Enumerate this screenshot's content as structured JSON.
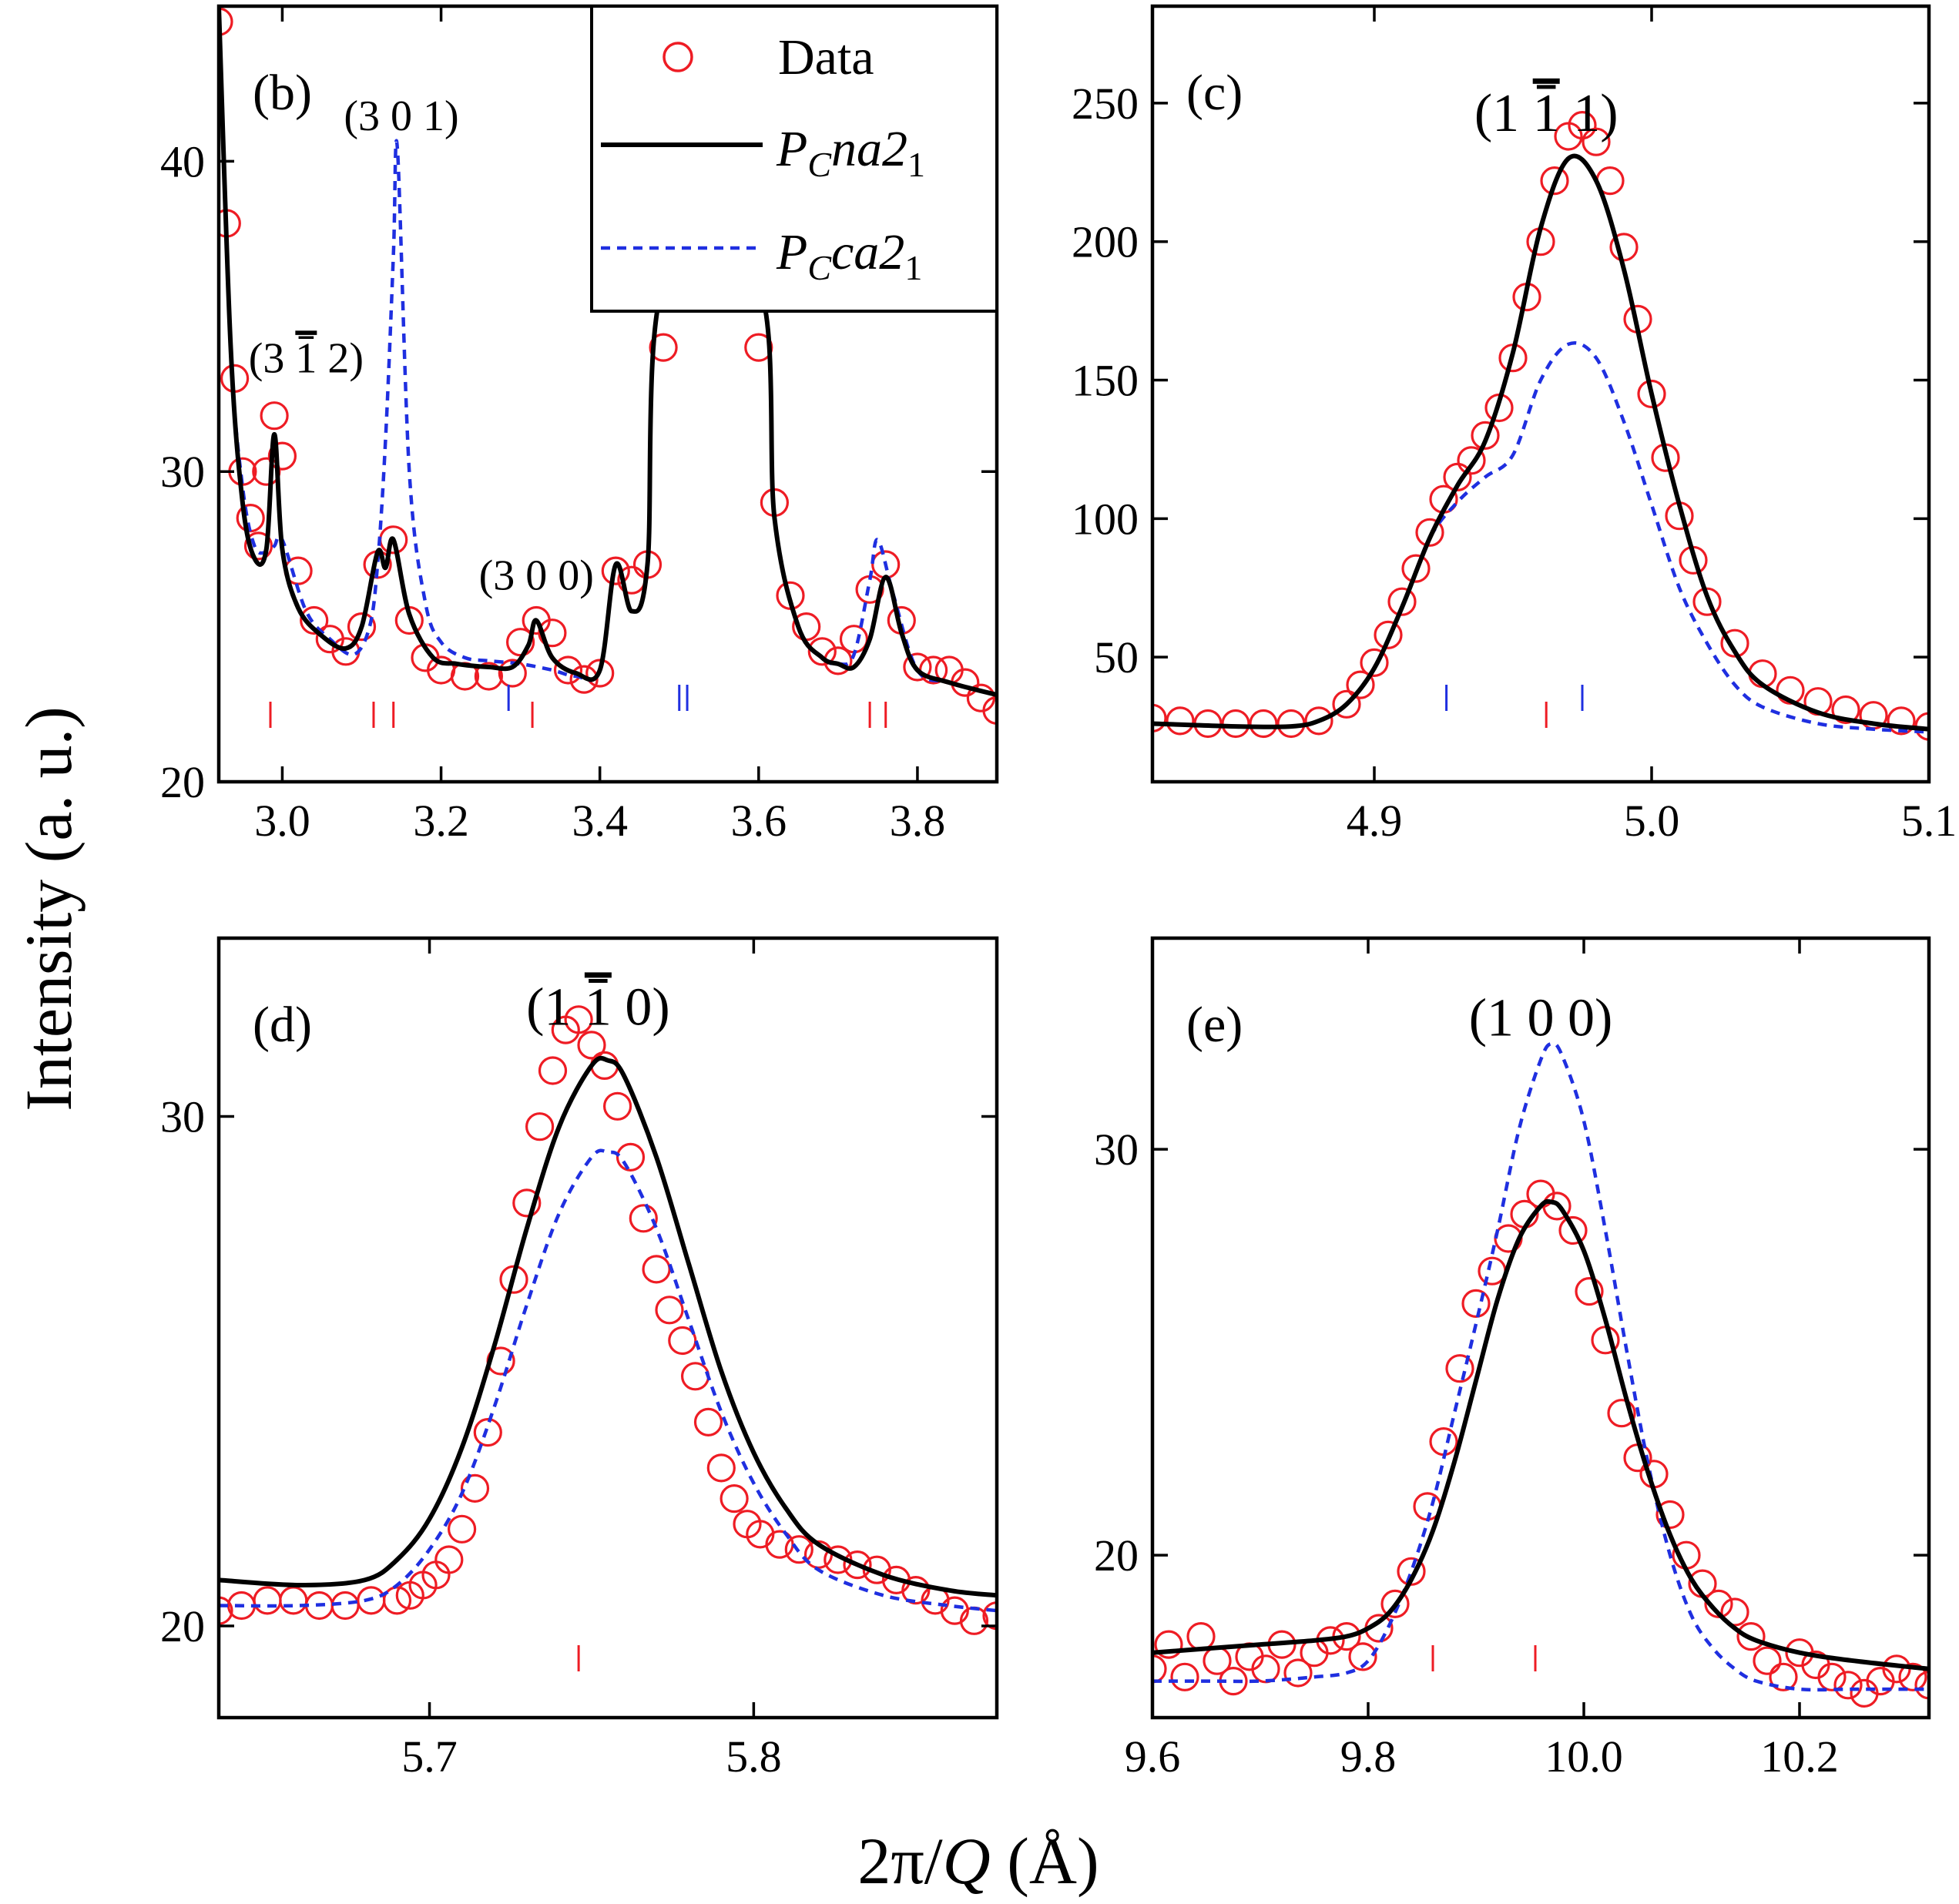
{
  "figure": {
    "ylabel": "Intensity (a. u.)",
    "xlabel_prefix": "2π/",
    "xlabel_var": "Q",
    "xlabel_suffix": " (Å)"
  },
  "colors": {
    "data": "#ee1c24",
    "fit_na": "#000000",
    "fit_ca": "#1f2fe0",
    "tick_na": "#ee1c24",
    "tick_ca": "#1f2fe0"
  },
  "legend": {
    "data_label": "Data",
    "na_label_main": "P",
    "na_label_sub": "C",
    "na_label_rest": "na2",
    "na_label_sub2": "1",
    "ca_label_main": "P",
    "ca_label_sub": "C",
    "ca_label_rest": "ca2",
    "ca_label_sub2": "1"
  },
  "chart_data": [
    {
      "type": "scatter+line",
      "panel": "(b)",
      "xlim": [
        2.92,
        3.9
      ],
      "ylim": [
        20,
        45
      ],
      "xticks": [
        3.0,
        3.2,
        3.4,
        3.6,
        3.8
      ],
      "xticklabels": [
        "3.0",
        "3.2",
        "3.4",
        "3.6",
        "3.8"
      ],
      "yticks": [
        20,
        30,
        40
      ],
      "yticklabels": [
        "20",
        "30",
        "40"
      ],
      "annotations": [
        {
          "text": "(3 ",
          "bar": "1",
          "after": " 2)",
          "x": 3.03,
          "y": 33.2
        },
        {
          "text": "(3 0 1)",
          "x": 3.15,
          "y": 41.0
        },
        {
          "text": "(3 0 0)",
          "x": 3.32,
          "y": 26.2
        }
      ],
      "series": [
        {
          "name": "Data",
          "x": [
            2.92,
            2.93,
            2.94,
            2.95,
            2.96,
            2.97,
            2.98,
            2.99,
            3.0,
            3.02,
            3.04,
            3.06,
            3.08,
            3.1,
            3.12,
            3.14,
            3.16,
            3.18,
            3.2,
            3.23,
            3.26,
            3.29,
            3.3,
            3.32,
            3.34,
            3.36,
            3.38,
            3.4,
            3.42,
            3.44,
            3.46,
            3.48,
            3.6,
            3.62,
            3.64,
            3.66,
            3.68,
            3.7,
            3.72,
            3.74,
            3.76,
            3.78,
            3.8,
            3.82,
            3.84,
            3.86,
            3.88,
            3.9
          ],
          "y": [
            44.5,
            38.0,
            33.0,
            30.0,
            28.5,
            27.6,
            30.0,
            31.8,
            30.5,
            26.8,
            25.2,
            24.6,
            24.2,
            25.0,
            27.0,
            27.8,
            25.2,
            24.0,
            23.6,
            23.4,
            23.4,
            23.5,
            24.5,
            25.2,
            24.8,
            23.6,
            23.3,
            23.5,
            26.8,
            26.5,
            27.0,
            34.0,
            34.0,
            29.0,
            26.0,
            25.0,
            24.2,
            23.9,
            24.6,
            26.2,
            27.0,
            25.2,
            23.7,
            23.6,
            23.6,
            23.2,
            22.7,
            22.3
          ]
        },
        {
          "name": "PCna21",
          "x": [
            2.92,
            2.935,
            2.95,
            2.965,
            2.98,
            2.99,
            3.0,
            3.02,
            3.05,
            3.08,
            3.1,
            3.12,
            3.13,
            3.14,
            3.16,
            3.19,
            3.22,
            3.26,
            3.29,
            3.31,
            3.32,
            3.34,
            3.37,
            3.4,
            3.42,
            3.44,
            3.46,
            3.48,
            3.6,
            3.62,
            3.65,
            3.68,
            3.7,
            3.72,
            3.74,
            3.76,
            3.78,
            3.8,
            3.84,
            3.9
          ],
          "y": [
            45.0,
            34.0,
            29.0,
            27.2,
            27.5,
            31.2,
            27.5,
            25.6,
            24.7,
            24.3,
            25.0,
            27.4,
            26.9,
            27.8,
            25.4,
            24.0,
            23.8,
            23.7,
            23.7,
            24.4,
            25.2,
            24.0,
            23.5,
            23.6,
            27.0,
            25.5,
            27.0,
            36.0,
            36.0,
            28.5,
            25.0,
            24.0,
            23.8,
            23.7,
            24.6,
            26.6,
            24.8,
            23.6,
            23.2,
            22.8
          ]
        },
        {
          "name": "PCca21",
          "x": [
            2.92,
            2.935,
            2.95,
            2.965,
            2.98,
            2.99,
            3.0,
            3.03,
            3.06,
            3.09,
            3.11,
            3.12,
            3.13,
            3.14,
            3.145,
            3.16,
            3.18,
            3.2,
            3.23,
            3.26,
            3.3,
            3.34,
            3.37,
            3.4,
            3.42,
            3.44,
            3.46,
            3.48,
            3.6,
            3.62,
            3.65,
            3.68,
            3.7,
            3.72,
            3.74,
            3.75,
            3.77,
            3.8,
            3.84,
            3.9
          ],
          "y": [
            45.0,
            34.0,
            29.5,
            27.6,
            27.4,
            27.6,
            27.8,
            25.5,
            24.6,
            24.1,
            25.0,
            27.0,
            31.0,
            37.0,
            40.4,
            30.0,
            25.8,
            24.5,
            24.0,
            23.9,
            23.8,
            23.6,
            23.4,
            23.6,
            27.0,
            25.5,
            27.0,
            36.0,
            36.0,
            28.5,
            25.0,
            24.0,
            23.8,
            24.1,
            26.5,
            27.8,
            26.0,
            23.6,
            23.2,
            22.8
          ]
        }
      ],
      "ticks_na": [
        2.985,
        3.115,
        3.14,
        3.315,
        3.74,
        3.76
      ],
      "ticks_ca": [
        3.285,
        3.5,
        3.51
      ]
    },
    {
      "type": "scatter+line",
      "panel": "(c)",
      "xlim": [
        4.82,
        5.1
      ],
      "ylim": [
        5,
        285
      ],
      "xticks": [
        4.9,
        5.0,
        5.1
      ],
      "xticklabels": [
        "4.9",
        "5.0",
        "5.1"
      ],
      "yticks": [
        50,
        100,
        150,
        200,
        250
      ],
      "yticklabels": [
        "50",
        "100",
        "150",
        "200",
        "250"
      ],
      "annotations": [
        {
          "text": "(1 ",
          "bar": "1",
          "after": " 1)",
          "x": 4.962,
          "y": 240
        }
      ],
      "series": [
        {
          "name": "Data",
          "x": [
            4.82,
            4.83,
            4.84,
            4.85,
            4.86,
            4.87,
            4.88,
            4.89,
            4.895,
            4.9,
            4.905,
            4.91,
            4.915,
            4.92,
            4.925,
            4.93,
            4.935,
            4.94,
            4.945,
            4.95,
            4.955,
            4.96,
            4.965,
            4.97,
            4.975,
            4.98,
            4.985,
            4.99,
            4.995,
            5.0,
            5.005,
            5.01,
            5.015,
            5.02,
            5.03,
            5.04,
            5.05,
            5.06,
            5.07,
            5.08,
            5.09,
            5.1
          ],
          "y": [
            28,
            27,
            26,
            26,
            26,
            26,
            27,
            33,
            40,
            48,
            58,
            70,
            82,
            95,
            107,
            115,
            121,
            130,
            140,
            158,
            180,
            200,
            222,
            238,
            242,
            236,
            222,
            198,
            172,
            145,
            122,
            101,
            85,
            70,
            55,
            44,
            38,
            34,
            31,
            29,
            27,
            25
          ]
        },
        {
          "name": "PCna21",
          "x": [
            4.82,
            4.85,
            4.87,
            4.88,
            4.89,
            4.9,
            4.91,
            4.92,
            4.93,
            4.94,
            4.95,
            4.96,
            4.97,
            4.98,
            4.99,
            5.0,
            5.01,
            5.02,
            5.03,
            5.04,
            5.06,
            5.08,
            5.1
          ],
          "y": [
            26,
            25,
            25,
            27,
            33,
            46,
            68,
            93,
            112,
            128,
            160,
            205,
            230,
            222,
            190,
            145,
            105,
            72,
            52,
            40,
            30,
            26,
            24
          ]
        },
        {
          "name": "PCca21",
          "x": [
            4.82,
            4.85,
            4.87,
            4.88,
            4.89,
            4.9,
            4.91,
            4.92,
            4.93,
            4.94,
            4.95,
            4.96,
            4.97,
            4.98,
            4.99,
            5.0,
            5.01,
            5.02,
            5.03,
            5.04,
            5.06,
            5.08,
            5.1
          ],
          "y": [
            26,
            25,
            25,
            27,
            33,
            46,
            68,
            93,
            106,
            115,
            123,
            150,
            163,
            158,
            135,
            105,
            75,
            55,
            40,
            32,
            26,
            24,
            23
          ]
        }
      ],
      "ticks_na": [
        4.962
      ],
      "ticks_ca": [
        4.926,
        4.975
      ]
    },
    {
      "type": "scatter+line",
      "panel": "(d)",
      "xlim": [
        5.635,
        5.875
      ],
      "ylim": [
        18.2,
        33.5
      ],
      "xticks": [
        5.7,
        5.8
      ],
      "xticklabels": [
        "5.7",
        "5.8"
      ],
      "yticks": [
        20,
        30
      ],
      "yticklabels": [
        "20",
        "30"
      ],
      "annotations": [
        {
          "text": "(1 ",
          "bar": "1",
          "after": " 0)",
          "x": 5.752,
          "y": 31.8
        }
      ],
      "series": [
        {
          "name": "Data",
          "x": [
            5.635,
            5.642,
            5.65,
            5.658,
            5.666,
            5.674,
            5.682,
            5.69,
            5.694,
            5.698,
            5.702,
            5.706,
            5.71,
            5.714,
            5.718,
            5.722,
            5.726,
            5.73,
            5.734,
            5.738,
            5.742,
            5.746,
            5.75,
            5.754,
            5.758,
            5.762,
            5.766,
            5.77,
            5.774,
            5.778,
            5.782,
            5.786,
            5.79,
            5.794,
            5.798,
            5.802,
            5.808,
            5.814,
            5.82,
            5.826,
            5.832,
            5.838,
            5.844,
            5.85,
            5.856,
            5.862,
            5.868,
            5.875
          ],
          "y": [
            20.3,
            20.4,
            20.5,
            20.5,
            20.4,
            20.4,
            20.5,
            20.5,
            20.6,
            20.8,
            21.0,
            21.3,
            21.9,
            22.7,
            23.8,
            25.2,
            26.8,
            28.3,
            29.8,
            30.9,
            31.7,
            31.9,
            31.4,
            31.0,
            30.2,
            29.2,
            28.0,
            27.0,
            26.2,
            25.6,
            24.9,
            24.0,
            23.1,
            22.5,
            22.0,
            21.8,
            21.6,
            21.5,
            21.4,
            21.3,
            21.2,
            21.1,
            20.9,
            20.7,
            20.5,
            20.3,
            20.1,
            20.2
          ]
        },
        {
          "name": "PCna21",
          "x": [
            5.635,
            5.66,
            5.68,
            5.69,
            5.7,
            5.71,
            5.72,
            5.73,
            5.74,
            5.75,
            5.755,
            5.76,
            5.77,
            5.78,
            5.79,
            5.8,
            5.81,
            5.82,
            5.84,
            5.86,
            5.875
          ],
          "y": [
            20.9,
            20.8,
            20.9,
            21.3,
            22.1,
            23.5,
            25.5,
            27.8,
            29.8,
            31.0,
            31.1,
            30.8,
            29.2,
            27.1,
            25.0,
            23.4,
            22.3,
            21.6,
            21.0,
            20.7,
            20.6
          ]
        },
        {
          "name": "PCca21",
          "x": [
            5.635,
            5.66,
            5.68,
            5.69,
            5.7,
            5.71,
            5.72,
            5.73,
            5.74,
            5.75,
            5.755,
            5.76,
            5.77,
            5.78,
            5.79,
            5.8,
            5.81,
            5.82,
            5.84,
            5.86,
            5.875
          ],
          "y": [
            20.4,
            20.4,
            20.5,
            20.8,
            21.5,
            22.6,
            24.3,
            26.3,
            28.1,
            29.2,
            29.3,
            29.1,
            27.8,
            26.0,
            24.2,
            22.8,
            21.8,
            21.1,
            20.6,
            20.4,
            20.3
          ]
        }
      ],
      "ticks_na": [
        5.746
      ],
      "ticks_ca": []
    },
    {
      "type": "scatter+line",
      "panel": "(e)",
      "xlim": [
        9.6,
        10.32
      ],
      "ylim": [
        16.0,
        35.2
      ],
      "xticks": [
        9.6,
        9.8,
        10.0,
        10.2
      ],
      "xticklabels": [
        "9.6",
        "9.8",
        "10.0",
        "10.2"
      ],
      "yticks": [
        20,
        30
      ],
      "yticklabels": [
        "20",
        "30"
      ],
      "annotations": [
        {
          "text": "(1 0 0)",
          "x": 9.96,
          "y": 32.8
        }
      ],
      "series": [
        {
          "name": "Data",
          "x": [
            9.6,
            9.615,
            9.63,
            9.645,
            9.66,
            9.675,
            9.69,
            9.705,
            9.72,
            9.735,
            9.75,
            9.765,
            9.78,
            9.795,
            9.81,
            9.825,
            9.84,
            9.855,
            9.87,
            9.885,
            9.9,
            9.915,
            9.93,
            9.945,
            9.96,
            9.975,
            9.99,
            10.005,
            10.02,
            10.035,
            10.05,
            10.065,
            10.08,
            10.095,
            10.11,
            10.125,
            10.14,
            10.155,
            10.17,
            10.185,
            10.2,
            10.215,
            10.23,
            10.245,
            10.26,
            10.275,
            10.29,
            10.305,
            10.32
          ],
          "y": [
            17.2,
            17.8,
            17.0,
            18.0,
            17.4,
            16.9,
            17.5,
            17.2,
            17.8,
            17.1,
            17.6,
            17.9,
            18.0,
            17.5,
            18.2,
            18.8,
            19.6,
            21.2,
            22.8,
            24.6,
            26.2,
            27.0,
            27.8,
            28.4,
            28.9,
            28.6,
            28.0,
            26.5,
            25.3,
            23.5,
            22.4,
            22.0,
            21.0,
            20.0,
            19.3,
            18.8,
            18.6,
            18.0,
            17.4,
            17.0,
            17.6,
            17.3,
            17.0,
            16.8,
            16.6,
            16.9,
            17.2,
            17.0,
            16.8
          ]
        },
        {
          "name": "PCna21",
          "x": [
            9.6,
            9.65,
            9.7,
            9.75,
            9.78,
            9.8,
            9.82,
            9.84,
            9.86,
            9.88,
            9.9,
            9.92,
            9.94,
            9.96,
            9.97,
            9.98,
            10.0,
            10.02,
            10.04,
            10.06,
            10.08,
            10.1,
            10.12,
            10.14,
            10.16,
            10.2,
            10.25,
            10.32
          ],
          "y": [
            17.6,
            17.7,
            17.8,
            17.9,
            18.0,
            18.2,
            18.6,
            19.4,
            20.6,
            22.3,
            24.3,
            26.3,
            27.8,
            28.6,
            28.7,
            28.5,
            27.5,
            25.8,
            23.8,
            22.0,
            20.5,
            19.4,
            18.7,
            18.2,
            17.9,
            17.6,
            17.4,
            17.2
          ]
        },
        {
          "name": "PCca21",
          "x": [
            9.6,
            9.65,
            9.7,
            9.75,
            9.78,
            9.8,
            9.82,
            9.84,
            9.86,
            9.88,
            9.9,
            9.92,
            9.94,
            9.96,
            9.97,
            9.98,
            10.0,
            10.02,
            10.04,
            10.06,
            10.08,
            10.1,
            10.12,
            10.14,
            10.16,
            10.2,
            10.25,
            10.32
          ],
          "y": [
            16.9,
            16.9,
            16.9,
            17.0,
            17.1,
            17.4,
            18.3,
            19.6,
            21.3,
            23.5,
            25.7,
            28.0,
            30.5,
            32.2,
            32.6,
            32.3,
            30.7,
            28.0,
            25.0,
            22.2,
            20.0,
            18.5,
            17.7,
            17.2,
            16.9,
            16.7,
            16.7,
            16.7
          ]
        }
      ],
      "ticks_na": [
        9.86,
        9.955
      ],
      "ticks_ca": []
    }
  ]
}
